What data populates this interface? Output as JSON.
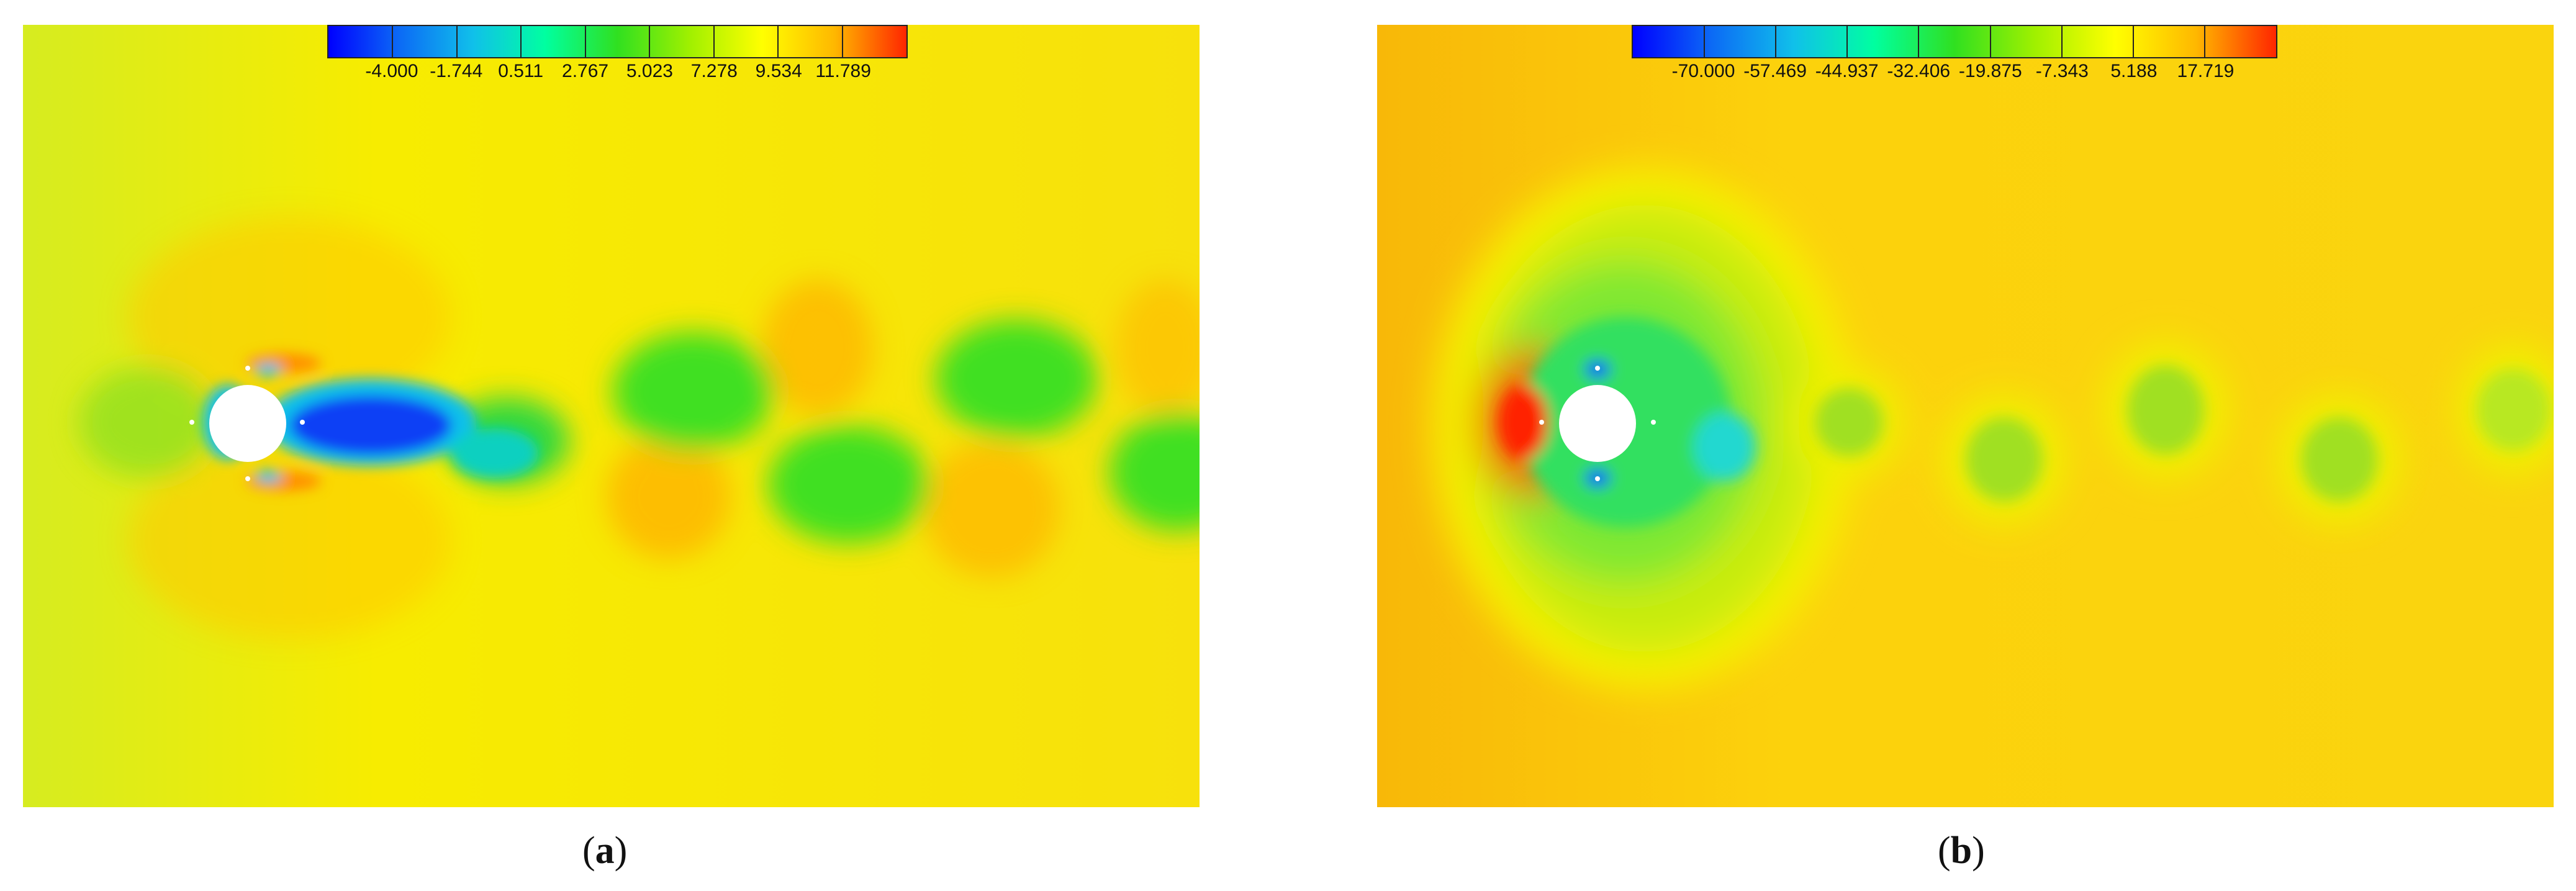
{
  "panels": [
    {
      "id": "a",
      "caption_letter": "a",
      "colorbar": {
        "labels": [
          "-4.000",
          "-1.744",
          "0.511",
          "2.767",
          "5.023",
          "7.278",
          "9.534",
          "11.789"
        ],
        "colors": [
          "#0000ff",
          "#0c6cf5",
          "#10c0ea",
          "#00ffa0",
          "#30e020",
          "#a0f000",
          "#ffff00",
          "#ffb800",
          "#ff2600"
        ]
      }
    },
    {
      "id": "b",
      "caption_letter": "b",
      "colorbar": {
        "labels": [
          "-70.000",
          "-57.469",
          "-44.937",
          "-32.406",
          "-19.875",
          "-7.343",
          "5.188",
          "17.719"
        ],
        "colors": [
          "#0000ff",
          "#0c6cf5",
          "#10c0ea",
          "#00ffa0",
          "#30e020",
          "#a0f000",
          "#ffff00",
          "#ffb800",
          "#ff2600"
        ]
      }
    }
  ],
  "colors": {
    "field_a_base": "#f5ea10",
    "field_b_base": "#fbcf10",
    "cylinder": "#ffffff"
  }
}
